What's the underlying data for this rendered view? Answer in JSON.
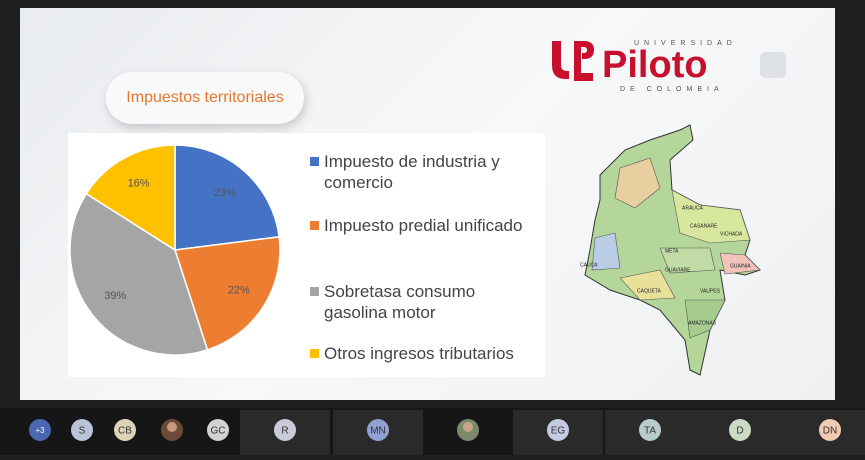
{
  "slide": {
    "title": "Impuestos territoriales",
    "logo": {
      "top": "UNIVERSIDAD",
      "name": "Piloto",
      "bottom": "DE COLOMBIA"
    }
  },
  "chart_data": {
    "type": "pie",
    "categories": [
      "Impuesto de industria y comercio",
      "Impuesto predial unificado",
      "Sobretasa consumo gasolina motor",
      "Otros ingresos tributarios"
    ],
    "values": [
      23,
      22,
      39,
      16
    ],
    "value_labels": [
      "23%",
      "22%",
      "39%",
      "16%"
    ],
    "colors": [
      "#4472c4",
      "#ed7d31",
      "#a5a5a5",
      "#ffc000"
    ]
  },
  "map": {
    "labels": [
      "ARAUCA",
      "CASANARE",
      "VICHADA",
      "META",
      "GUAINIA",
      "GUAVIARE",
      "CAQUETA",
      "VAUPES",
      "AMAZONAS",
      "CAUCA"
    ]
  },
  "participants": [
    {
      "initials": "+3",
      "color": "#4a67b0"
    },
    {
      "initials": "S",
      "color": "#b9c4d8"
    },
    {
      "initials": "CB",
      "color": "#ddd3b8"
    },
    {
      "initials": "GC",
      "color": "#d2d2d2"
    },
    {
      "initials": "R",
      "color": "#c9ccd8"
    },
    {
      "initials": "MN",
      "color": "#8fa2d2"
    },
    {
      "initials": "EG",
      "color": "#c4cae2"
    },
    {
      "initials": "TA",
      "color": "#b8cccc"
    },
    {
      "initials": "D",
      "color": "#cbdcc4"
    },
    {
      "initials": "DN",
      "color": "#f1cab2"
    }
  ]
}
